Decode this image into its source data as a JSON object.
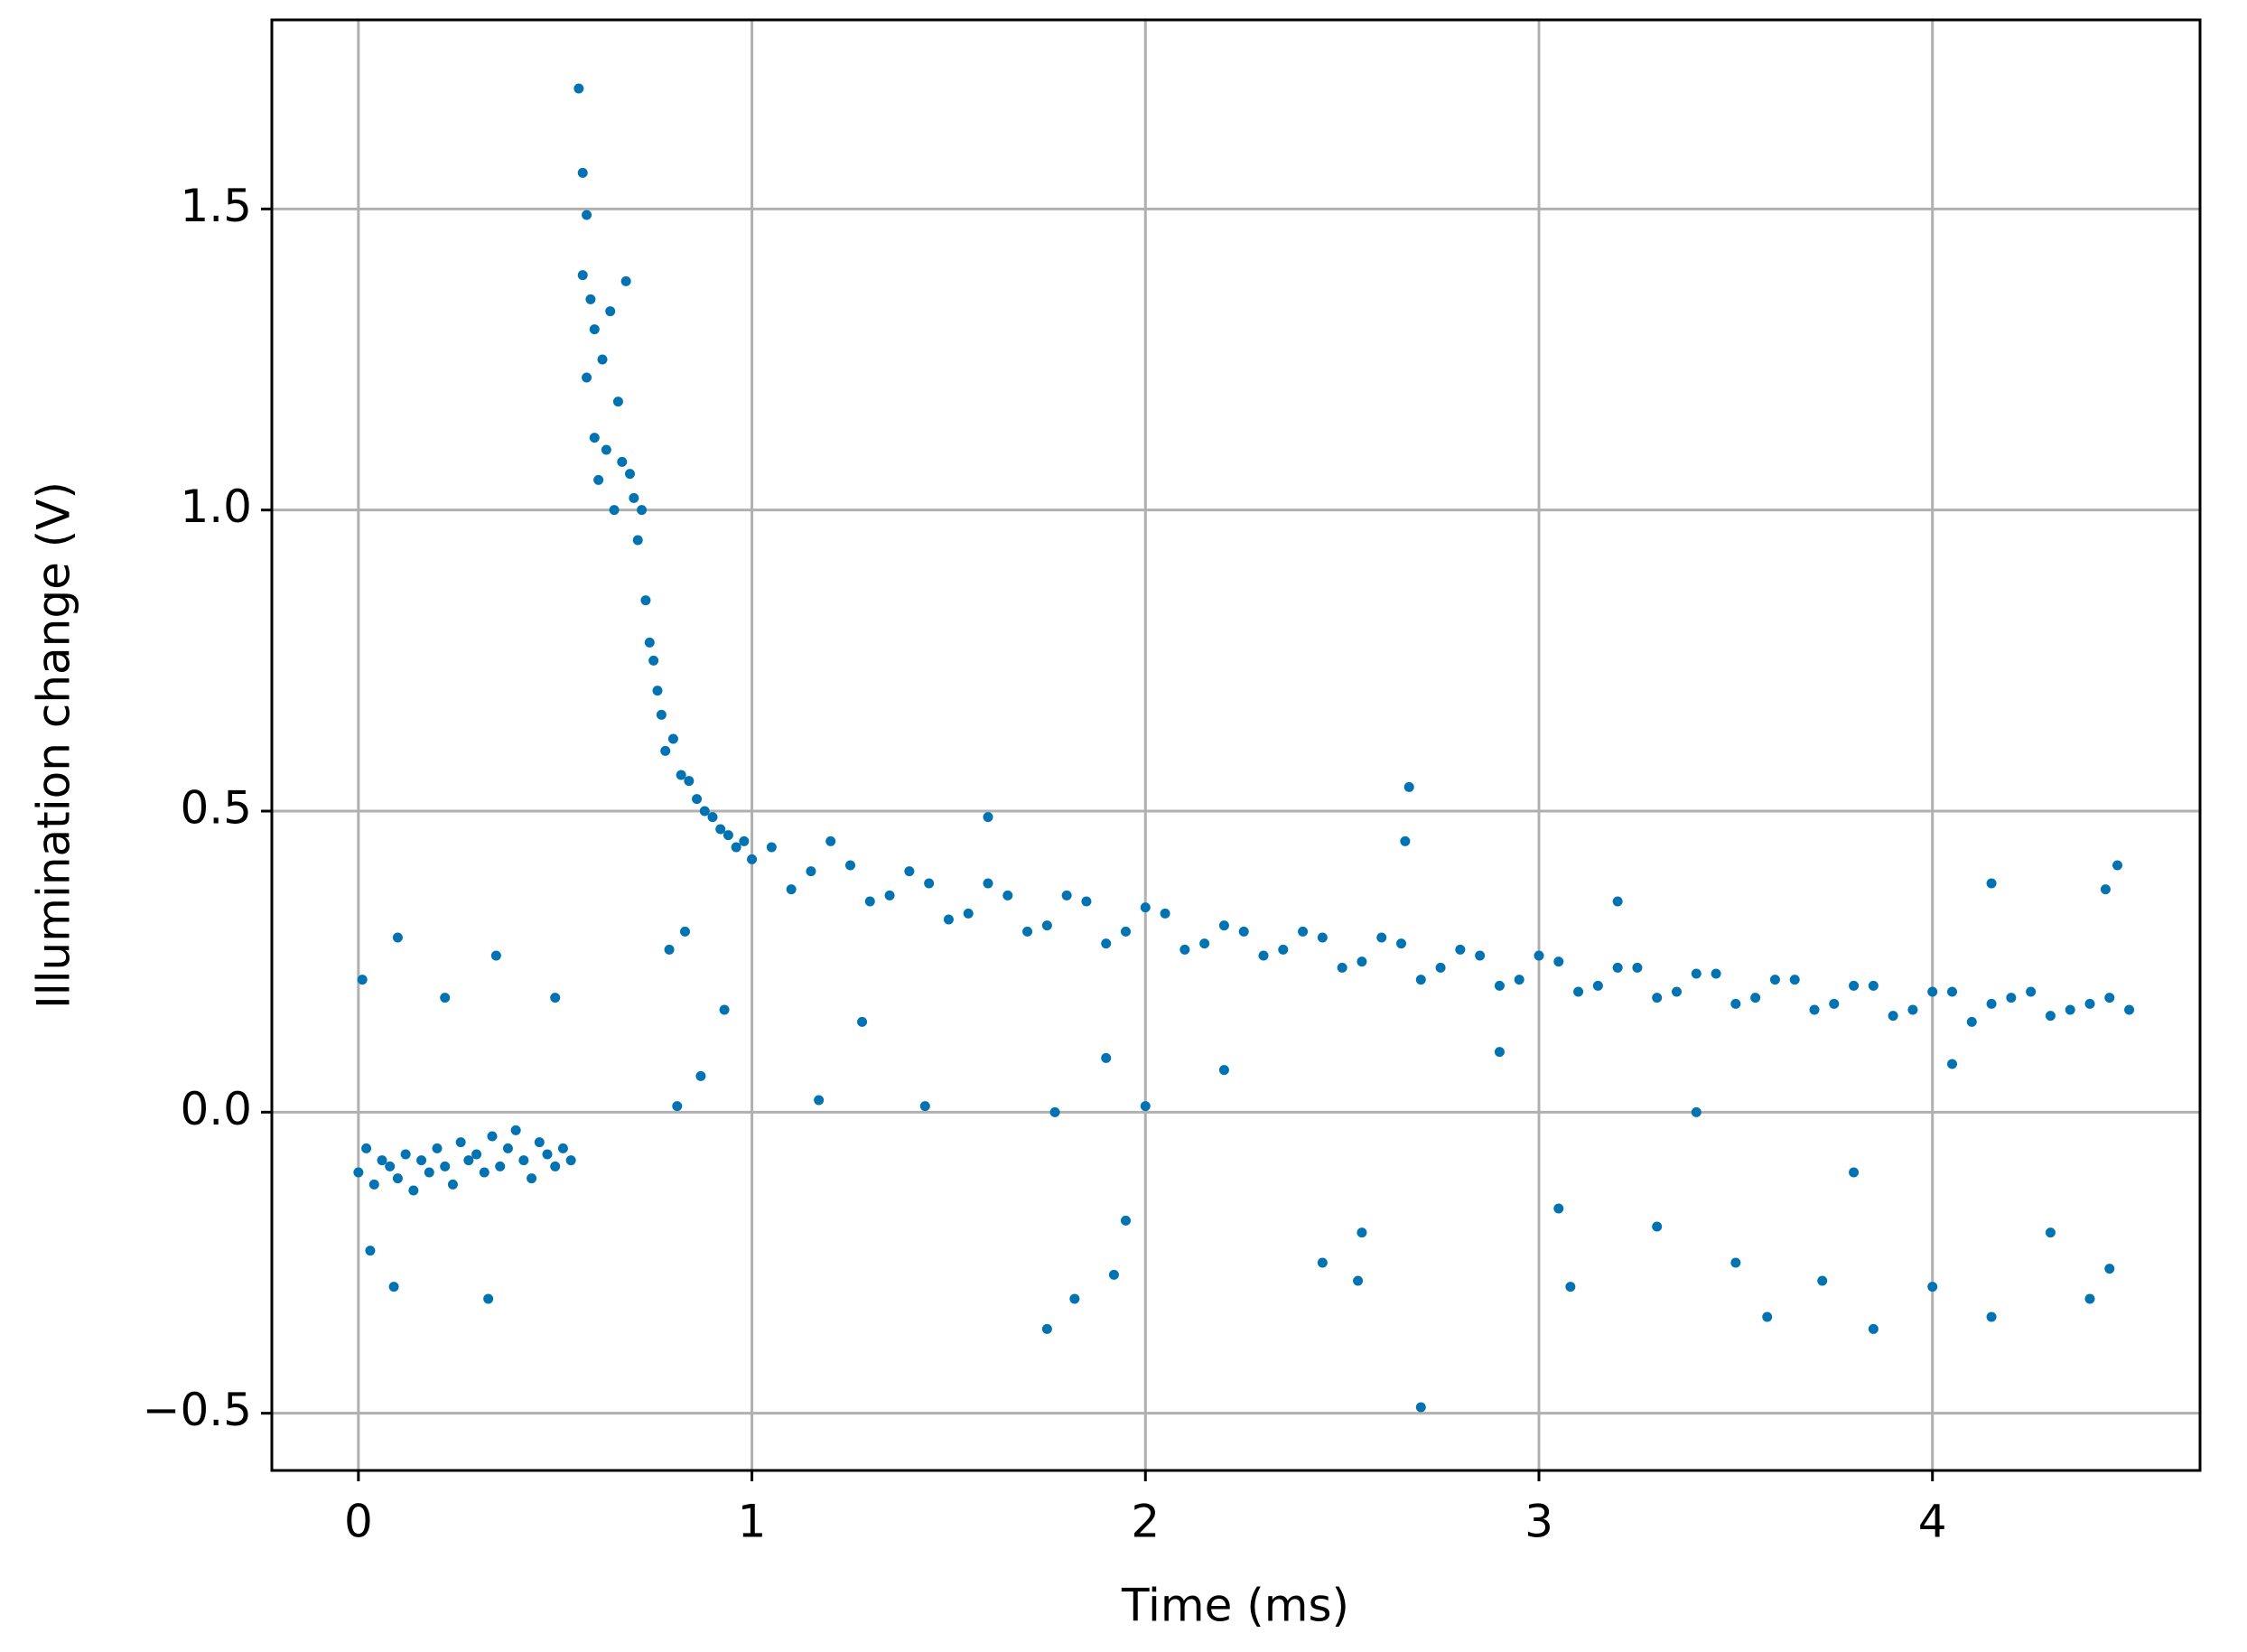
{
  "chart_data": {
    "type": "scatter",
    "x_label": "Time (ms)",
    "y_label": "Illumination change (V)",
    "color": "#0173b2",
    "grid": true,
    "xlim": [
      -0.22,
      4.68
    ],
    "ylim": [
      -0.595,
      1.814
    ],
    "xticks": [
      0,
      1,
      2,
      3,
      4
    ],
    "yticks": [
      {
        "value": -0.5,
        "label": "−0.5"
      },
      {
        "value": 0,
        "label": "0.0"
      },
      {
        "value": 0.5,
        "label": "0.5"
      },
      {
        "value": 1,
        "label": "1.0"
      },
      {
        "value": 1.5,
        "label": "1.5"
      }
    ],
    "x": [
      0,
      0.02,
      0.04,
      0.06,
      0.08,
      0.1,
      0.12,
      0.14,
      0.16,
      0.18,
      0.2,
      0.22,
      0.24,
      0.26,
      0.28,
      0.3,
      0.32,
      0.34,
      0.36,
      0.38,
      0.4,
      0.42,
      0.44,
      0.46,
      0.48,
      0.5,
      0.52,
      0.54,
      0.01,
      0.1,
      0.35,
      0.03,
      0.22,
      0.5,
      0.09,
      0.33,
      0.56,
      0.57,
      0.57,
      0.58,
      0.58,
      0.59,
      0.6,
      0.6,
      0.61,
      0.62,
      0.63,
      0.64,
      0.65,
      0.66,
      0.67,
      0.68,
      0.69,
      0.7,
      0.71,
      0.72,
      0.73,
      0.74,
      0.75,
      0.76,
      0.77,
      0.78,
      0.8,
      0.82,
      0.84,
      0.86,
      0.88,
      0.9,
      0.92,
      0.94,
      0.96,
      0.98,
      1.0,
      0.79,
      0.81,
      0.83,
      0.87,
      0.93,
      1.05,
      1.15,
      1.25,
      1.35,
      1.45,
      1.55,
      1.65,
      1.75,
      1.85,
      1.95,
      2.05,
      2.15,
      2.25,
      2.35,
      2.45,
      2.55,
      2.65,
      2.75,
      2.85,
      2.95,
      3.05,
      3.15,
      3.25,
      3.35,
      3.45,
      3.55,
      3.65,
      3.75,
      3.85,
      3.95,
      4.05,
      4.15,
      4.25,
      4.35,
      4.45,
      1.1,
      1.2,
      1.3,
      1.4,
      1.5,
      1.6,
      1.7,
      1.8,
      1.9,
      2.0,
      2.1,
      2.2,
      2.3,
      2.4,
      2.5,
      2.6,
      2.7,
      2.8,
      2.9,
      3.0,
      3.1,
      3.2,
      3.3,
      3.4,
      3.5,
      3.6,
      3.7,
      3.8,
      3.9,
      4.0,
      4.1,
      4.2,
      4.3,
      4.4,
      4.5,
      1.75,
      1.82,
      1.92,
      1.95,
      1.77,
      1.9,
      2.0,
      2.45,
      2.54,
      2.55,
      2.7,
      2.67,
      2.66,
      3.08,
      3.05,
      3.3,
      3.5,
      3.58,
      3.72,
      3.85,
      4.0,
      4.15,
      4.4,
      4.45,
      4.15,
      4.47,
      4.44,
      1.6,
      1.44,
      1.17,
      3.2,
      3.8,
      4.3,
      2.2,
      1.28,
      3.4,
      4.05,
      2.9
    ],
    "values": [
      -0.1,
      -0.06,
      -0.12,
      -0.08,
      -0.09,
      -0.11,
      -0.07,
      -0.13,
      -0.08,
      -0.1,
      -0.06,
      -0.09,
      -0.12,
      -0.05,
      -0.08,
      -0.07,
      -0.1,
      -0.04,
      -0.09,
      -0.06,
      -0.03,
      -0.08,
      -0.11,
      -0.05,
      -0.07,
      -0.09,
      -0.06,
      -0.08,
      0.22,
      0.29,
      0.26,
      -0.23,
      0.19,
      0.19,
      -0.29,
      -0.31,
      1.7,
      1.56,
      1.39,
      1.49,
      1.22,
      1.35,
      1.12,
      1.3,
      1.05,
      1.25,
      1.1,
      1.33,
      1.0,
      1.18,
      1.08,
      1.38,
      1.06,
      1.02,
      0.95,
      1.0,
      0.85,
      0.78,
      0.75,
      0.7,
      0.66,
      0.6,
      0.62,
      0.56,
      0.55,
      0.52,
      0.5,
      0.49,
      0.47,
      0.46,
      0.44,
      0.45,
      0.42,
      0.27,
      0.01,
      0.3,
      0.06,
      0.17,
      0.44,
      0.4,
      0.41,
      0.36,
      0.38,
      0.33,
      0.36,
      0.31,
      0.35,
      0.3,
      0.33,
      0.28,
      0.3,
      0.27,
      0.29,
      0.25,
      0.28,
      0.24,
      0.26,
      0.22,
      0.25,
      0.21,
      0.24,
      0.2,
      0.23,
      0.19,
      0.22,
      0.18,
      0.21,
      0.17,
      0.2,
      0.18,
      0.2,
      0.17,
      0.19,
      0.37,
      0.45,
      0.35,
      0.4,
      0.32,
      0.38,
      0.3,
      0.36,
      0.28,
      0.34,
      0.27,
      0.31,
      0.26,
      0.3,
      0.24,
      0.29,
      0.22,
      0.27,
      0.21,
      0.26,
      0.2,
      0.24,
      0.19,
      0.23,
      0.18,
      0.22,
      0.17,
      0.21,
      0.16,
      0.2,
      0.15,
      0.19,
      0.16,
      0.18,
      0.17,
      -0.36,
      -0.31,
      -0.27,
      -0.18,
      0.0,
      0.09,
      0.01,
      -0.25,
      -0.28,
      -0.2,
      -0.49,
      0.54,
      0.45,
      -0.29,
      -0.16,
      -0.19,
      -0.25,
      -0.34,
      -0.28,
      -0.36,
      -0.29,
      -0.34,
      -0.31,
      -0.26,
      0.38,
      0.41,
      0.37,
      0.49,
      0.01,
      0.02,
      0.35,
      -0.1,
      -0.2,
      0.07,
      0.15,
      0.0,
      0.08,
      0.1
    ]
  }
}
